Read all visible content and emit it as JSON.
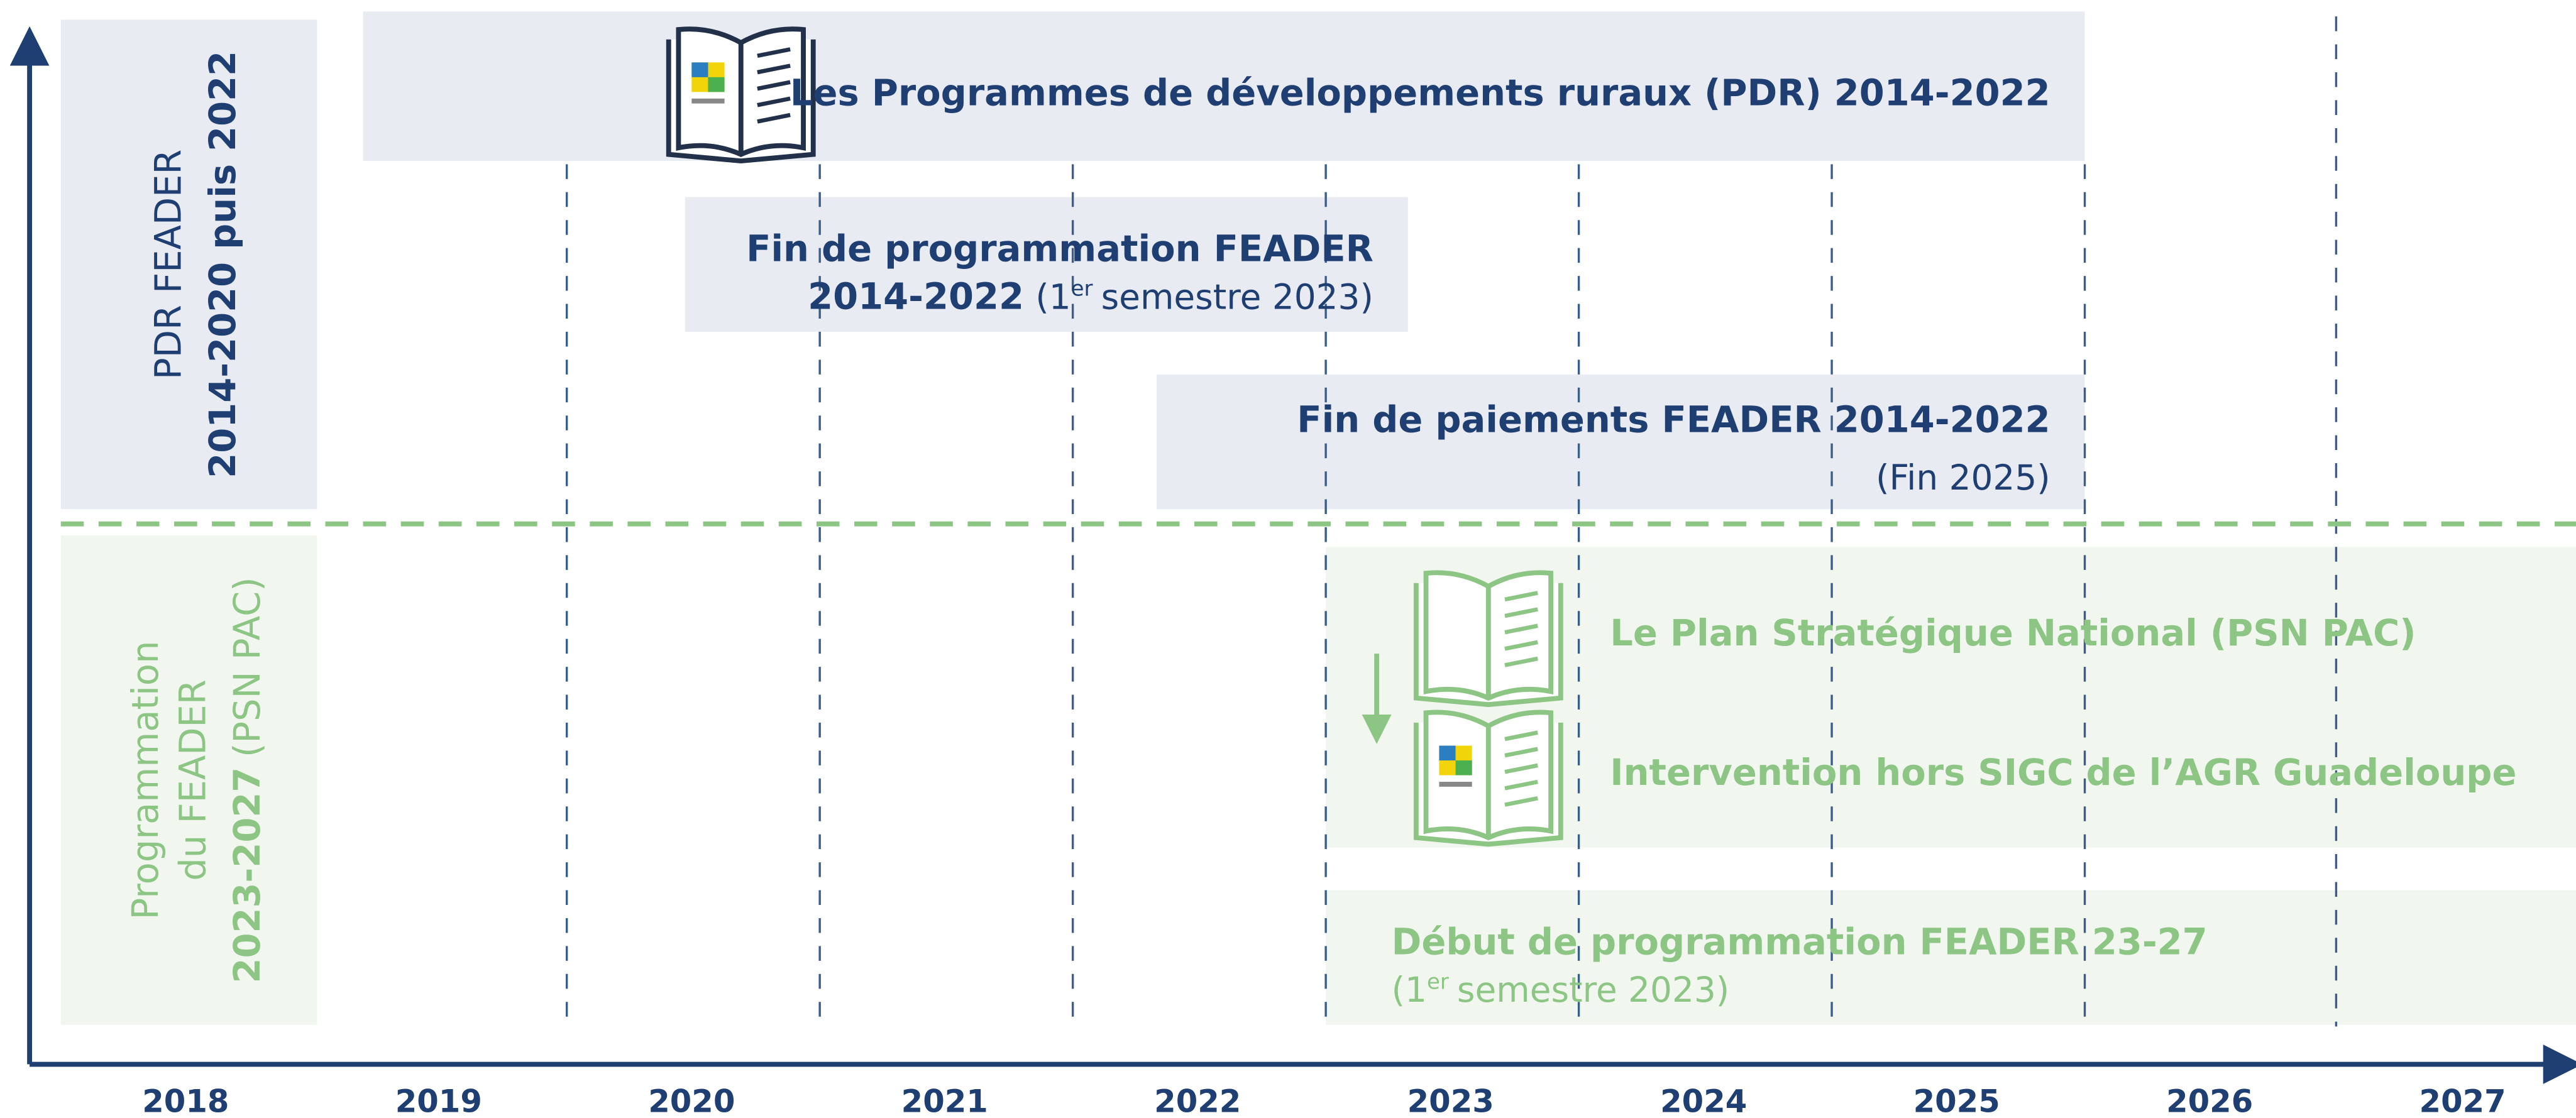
{
  "sidebar": {
    "pdr": {
      "line1": "PDR FEADER",
      "line2": "2014-2020 puis 2022"
    },
    "psn": {
      "line1": "Programmation",
      "line2": "du FEADER",
      "line3_bold": "2023-2027",
      "line3_rest": "(PSN PAC)"
    }
  },
  "boxes": {
    "pdr_programmes": {
      "text": "Les Programmes de développements ruraux (PDR) 2014-2022"
    },
    "fin_programmation": {
      "line1": "Fin de programmation FEADER",
      "line2_bold": "2014-2022",
      "line2_open": "(1",
      "line2_sup": "er",
      "line2_rest": "semestre 2023)"
    },
    "fin_paiements": {
      "line1": "Fin de paiements FEADER 2014-2022",
      "line2": "(Fin 2025)"
    },
    "psn": {
      "line1": "Le Plan Stratégique National (PSN PAC)",
      "line2": "Intervention hors SIGC de l’AGR Guadeloupe"
    },
    "debut_programmation": {
      "line1": "Début de programmation FEADER 23-27",
      "line2_open": "(1",
      "line2_sup": "er",
      "line2_rest": "semestre 2023)"
    }
  },
  "axis": {
    "years": [
      "2018",
      "2019",
      "2020",
      "2021",
      "2022",
      "2023",
      "2024",
      "2025",
      "2026",
      "2027"
    ]
  }
}
